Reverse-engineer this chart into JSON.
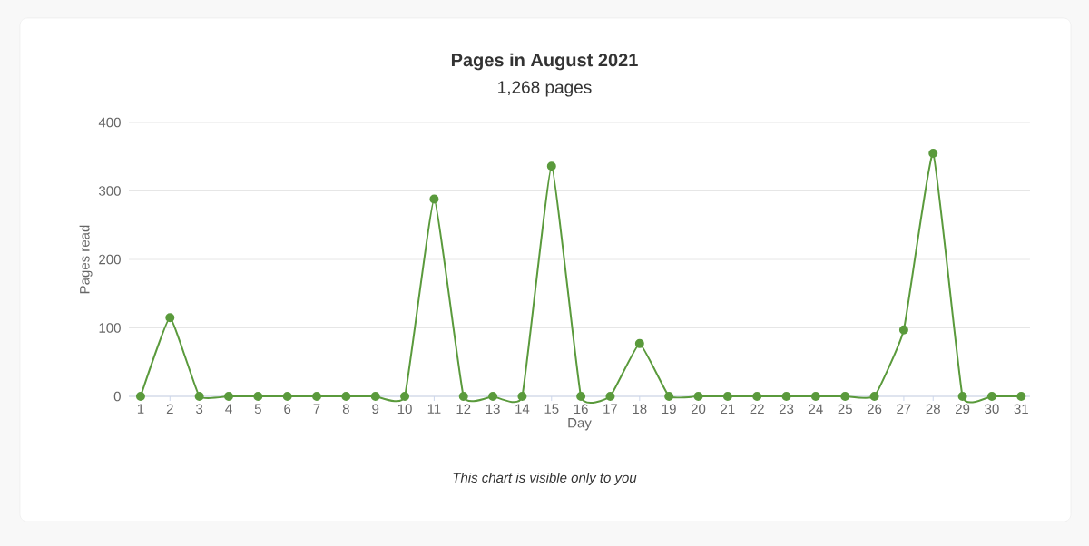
{
  "chart_data": {
    "type": "line",
    "title": "Pages in August 2021",
    "subtitle": "1,268 pages",
    "xlabel": "Day",
    "ylabel": "Pages read",
    "categories": [
      "1",
      "2",
      "3",
      "4",
      "5",
      "6",
      "7",
      "8",
      "9",
      "10",
      "11",
      "12",
      "13",
      "14",
      "15",
      "16",
      "17",
      "18",
      "19",
      "20",
      "21",
      "22",
      "23",
      "24",
      "25",
      "26",
      "27",
      "28",
      "29",
      "30",
      "31"
    ],
    "series": [
      {
        "color": "#5a9a3c",
        "values": [
          0,
          115,
          0,
          0,
          0,
          0,
          0,
          0,
          0,
          0,
          288,
          0,
          0,
          0,
          336,
          0,
          0,
          77,
          0,
          0,
          0,
          0,
          0,
          0,
          0,
          0,
          97,
          355,
          0,
          0,
          0
        ]
      }
    ],
    "ylim": [
      0,
      400
    ],
    "yticks": [
      0,
      100,
      200,
      300,
      400
    ],
    "grid": "y",
    "marker": "circle",
    "line_style": "solid",
    "annotations": [
      "This chart is visible only to you"
    ]
  }
}
